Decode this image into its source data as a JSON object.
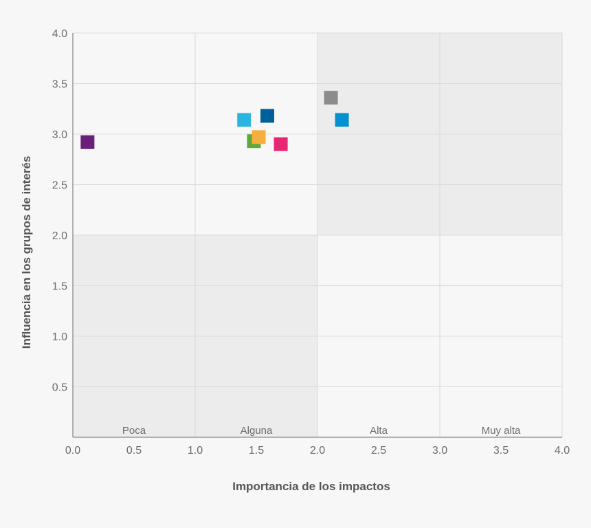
{
  "chart_data": {
    "type": "scatter",
    "xlabel": "Importancia de los impactos",
    "ylabel": "Influencia en los grupos de interés",
    "xlim": [
      0,
      4
    ],
    "ylim": [
      0,
      4
    ],
    "x_ticks": [
      "0.0",
      "0.5",
      "1.0",
      "1.5",
      "2.0",
      "2.5",
      "3.0",
      "3.5",
      "4.0"
    ],
    "y_ticks": [
      "0.5",
      "1.0",
      "1.5",
      "2.0",
      "2.5",
      "3.0",
      "3.5",
      "4.0"
    ],
    "grid": true,
    "zones": [
      {
        "label": "Poca",
        "x_range": [
          0,
          1
        ]
      },
      {
        "label": "Alguna",
        "x_range": [
          1,
          2
        ]
      },
      {
        "label": "Alta",
        "x_range": [
          2,
          3
        ]
      },
      {
        "label": "Muy alta",
        "x_range": [
          3,
          4
        ]
      }
    ],
    "shaded_regions": [
      {
        "x_range": [
          0,
          2
        ],
        "y_range": [
          0,
          2
        ],
        "color": "#ececec"
      },
      {
        "x_range": [
          2,
          4
        ],
        "y_range": [
          2,
          4
        ],
        "color": "#ececec"
      }
    ],
    "points": [
      {
        "x": 0.12,
        "y": 2.92,
        "color": "#6a1f7a"
      },
      {
        "x": 1.4,
        "y": 3.14,
        "color": "#29b5e0"
      },
      {
        "x": 1.59,
        "y": 3.18,
        "color": "#00619a"
      },
      {
        "x": 1.48,
        "y": 2.93,
        "color": "#5aaa3c"
      },
      {
        "x": 1.52,
        "y": 2.97,
        "color": "#f8ae3e"
      },
      {
        "x": 1.7,
        "y": 2.9,
        "color": "#e82774"
      },
      {
        "x": 2.11,
        "y": 3.36,
        "color": "#8c8c8c"
      },
      {
        "x": 2.2,
        "y": 3.14,
        "color": "#0391cf"
      }
    ]
  }
}
